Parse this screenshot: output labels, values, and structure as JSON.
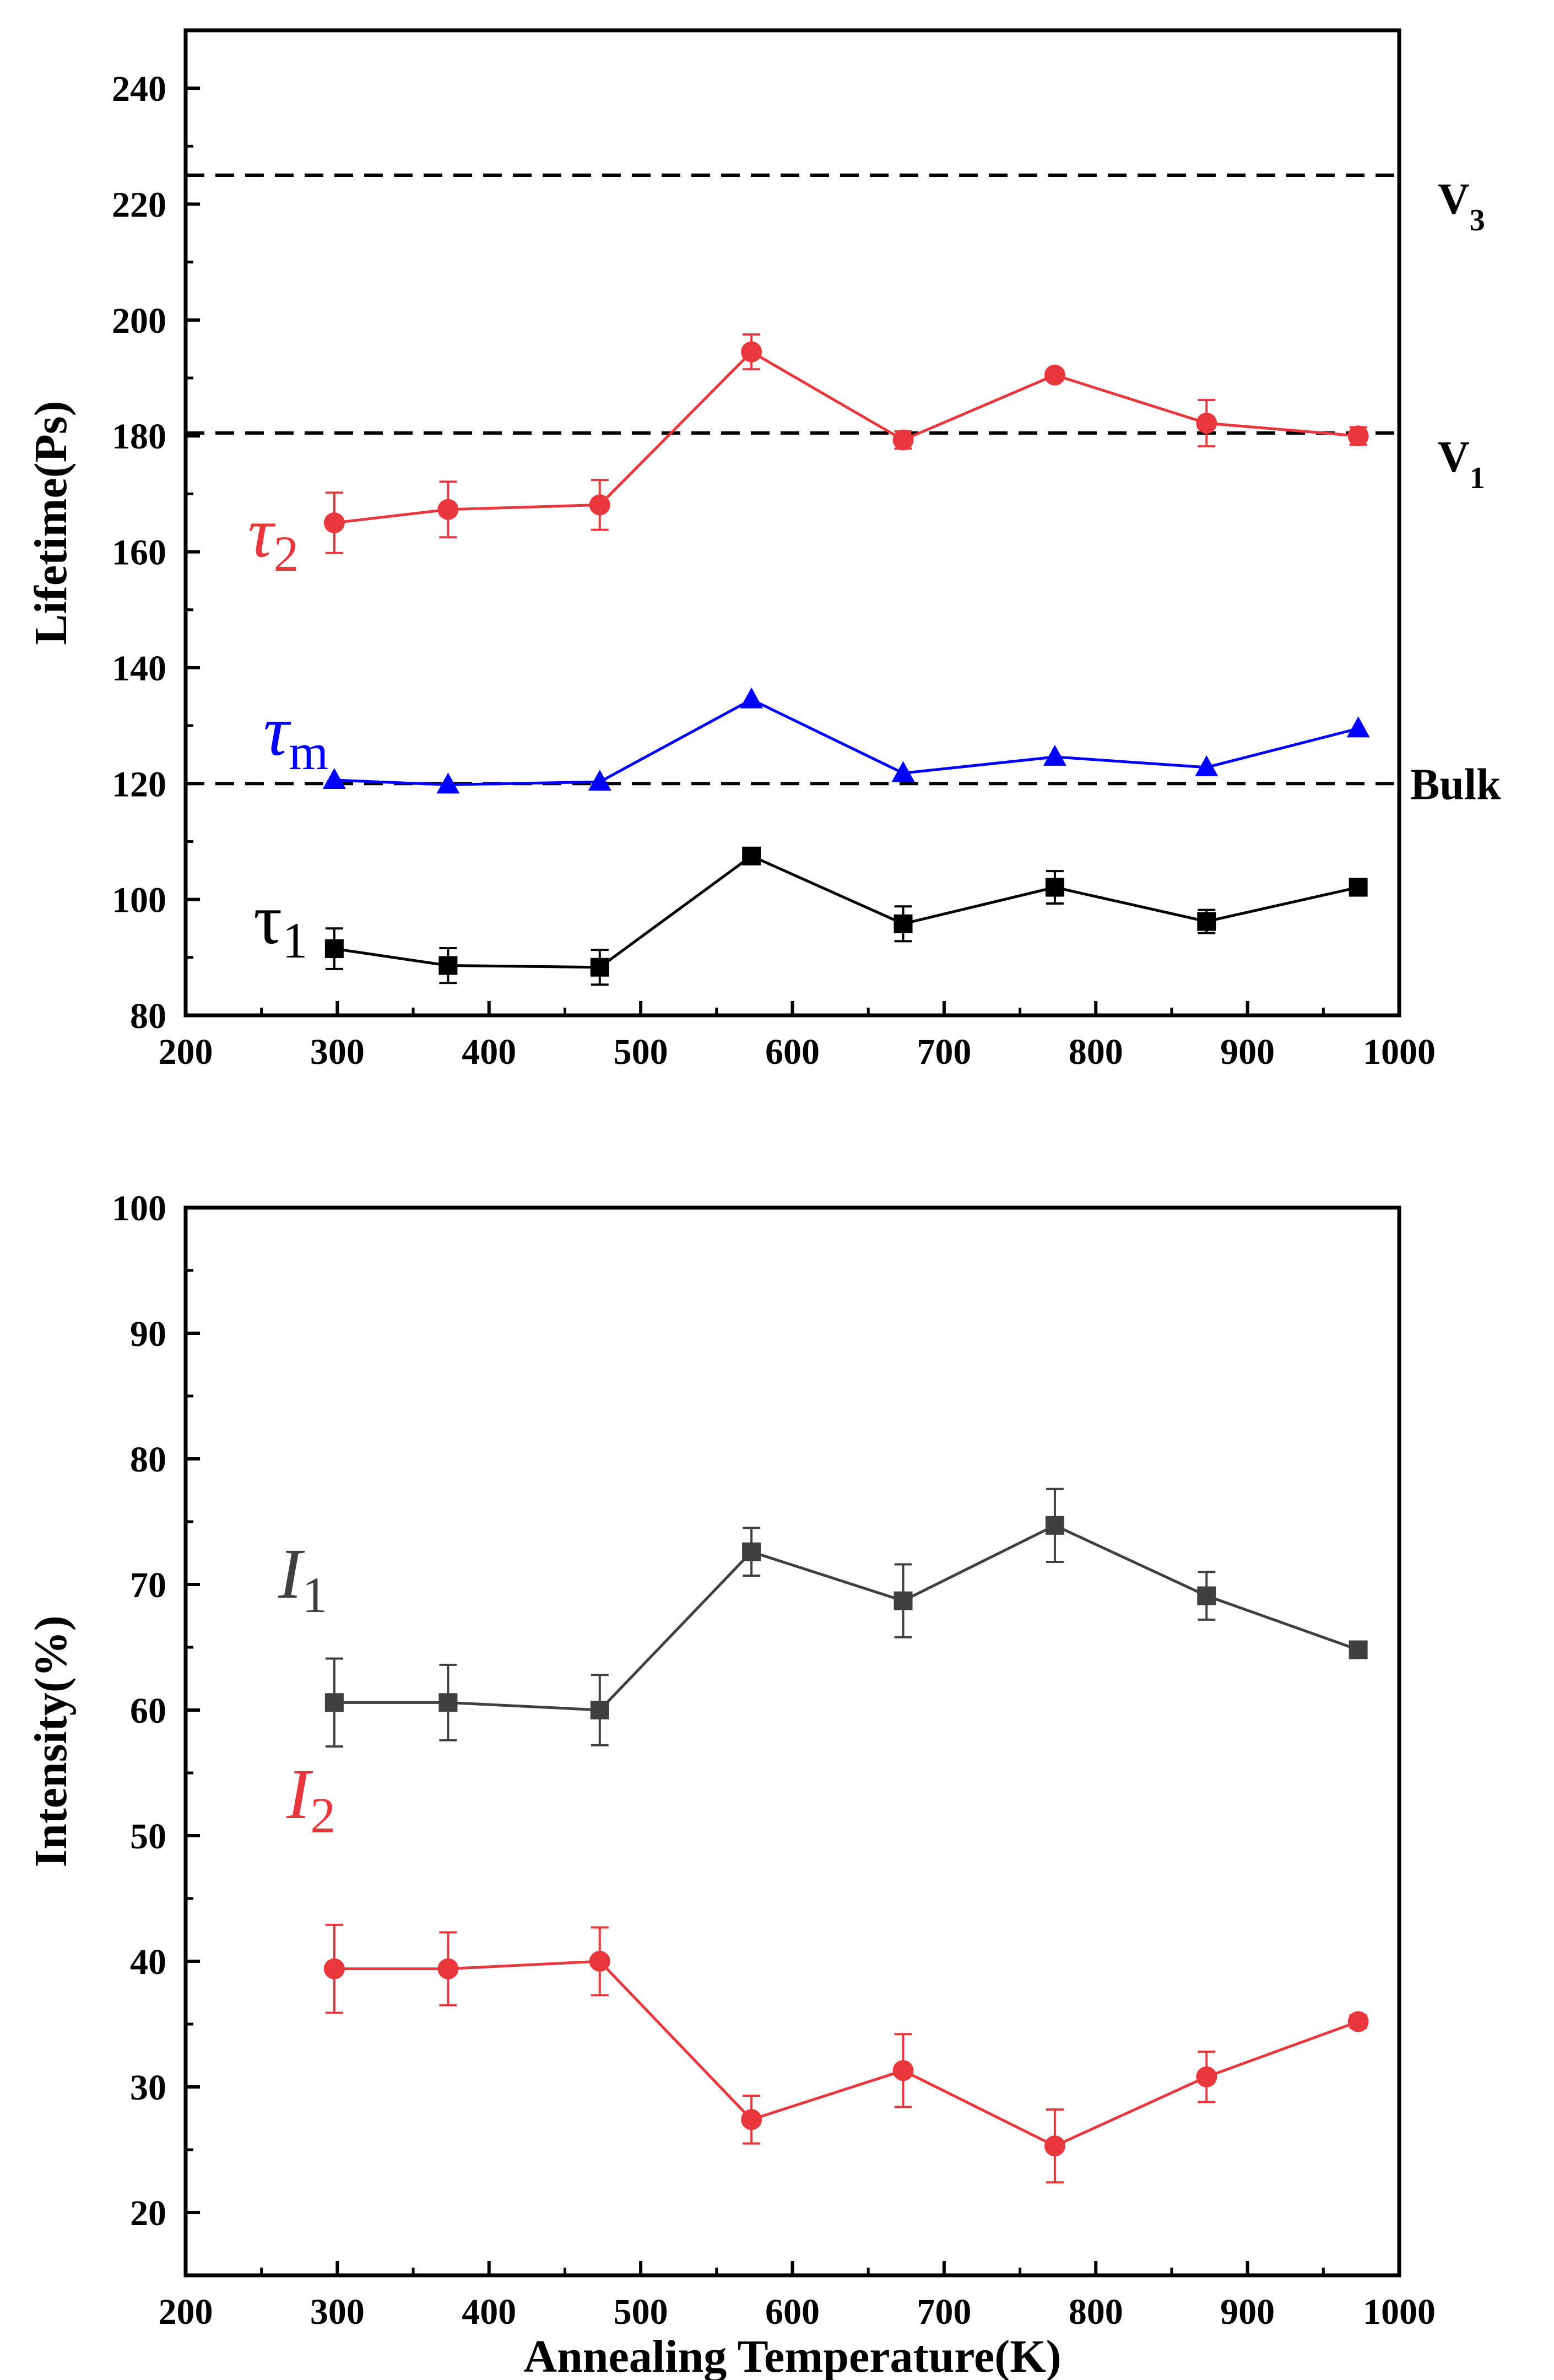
{
  "chart_data": [
    {
      "type": "line",
      "ylabel": "Lifetime(Ps)",
      "xlabel": "",
      "xlim": [
        200,
        1000
      ],
      "ylim": [
        80,
        250
      ],
      "xticks": [
        200,
        300,
        400,
        500,
        600,
        700,
        800,
        900,
        1000
      ],
      "yticks": [
        80,
        100,
        120,
        140,
        160,
        180,
        200,
        220,
        240
      ],
      "x": [
        298,
        373,
        473,
        573,
        673,
        773,
        873,
        973
      ],
      "series": [
        {
          "name": "τ2",
          "label_base": "τ",
          "label_sub": "2",
          "color": "#e8383d",
          "marker": "circle",
          "values": [
            165,
            167.3,
            168.1,
            194.5,
            179.3,
            190.5,
            182.2,
            180
          ],
          "errors": [
            5.2,
            4.8,
            4.3,
            3.0,
            1.5,
            0.8,
            4.0,
            1.5
          ]
        },
        {
          "name": "τm",
          "label_base": "τ",
          "label_sub": "m",
          "color": "#0000ff",
          "marker": "triangle",
          "values": [
            120.6,
            119.8,
            120.3,
            134.5,
            121.8,
            124.6,
            122.8,
            129.5
          ],
          "errors": []
        },
        {
          "name": "τ1",
          "label_base": "τ",
          "label_sub": "1",
          "color": "#000000",
          "marker": "square",
          "values": [
            91.5,
            88.6,
            88.3,
            107.5,
            95.8,
            102.1,
            96.2,
            102.1
          ],
          "errors": [
            3.5,
            3.0,
            3.0,
            0.8,
            3.0,
            2.8,
            2.0,
            0.8
          ]
        }
      ],
      "reference_lines": [
        {
          "value": 225,
          "label": "V",
          "label_sub": "3"
        },
        {
          "value": 180.5,
          "label": "V",
          "label_sub": "1"
        },
        {
          "value": 120,
          "label": "Bulk",
          "label_sub": ""
        }
      ]
    },
    {
      "type": "line",
      "ylabel": "Intensity(%)",
      "xlabel": "Annealing Temperature(K)",
      "xlim": [
        200,
        1000
      ],
      "ylim": [
        15,
        100
      ],
      "xticks": [
        200,
        300,
        400,
        500,
        600,
        700,
        800,
        900,
        1000
      ],
      "yticks": [
        20,
        30,
        40,
        50,
        60,
        70,
        80,
        90,
        100
      ],
      "x": [
        298,
        373,
        473,
        573,
        673,
        773,
        873,
        973
      ],
      "series": [
        {
          "name": "I1",
          "label_base": "I",
          "label_sub": "1",
          "color": "#404040",
          "marker": "square",
          "values": [
            60.6,
            60.6,
            60,
            72.6,
            68.7,
            74.7,
            69.1,
            64.8
          ],
          "errors": [
            3.5,
            3.0,
            2.8,
            1.9,
            2.9,
            2.9,
            1.9,
            0.5
          ]
        },
        {
          "name": "I2",
          "label_base": "I",
          "label_sub": "2",
          "color": "#e8383d",
          "marker": "circle",
          "values": [
            39.4,
            39.4,
            40,
            27.4,
            31.3,
            25.3,
            30.8,
            35.2
          ],
          "errors": [
            3.5,
            2.9,
            2.7,
            1.9,
            2.9,
            2.9,
            2.0,
            0.5
          ]
        }
      ],
      "reference_lines": []
    }
  ]
}
